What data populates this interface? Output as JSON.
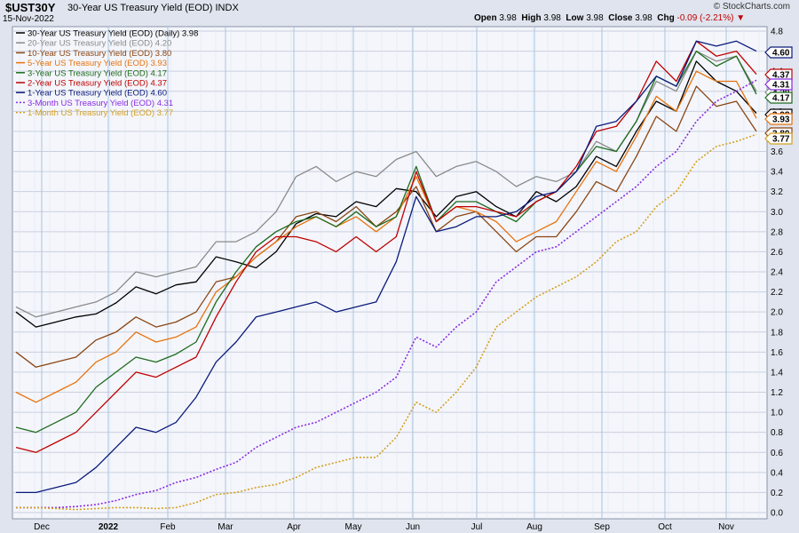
{
  "header": {
    "symbol": "$UST30Y",
    "description": "30-Year US Treasury Yield (EOD)",
    "exchange": "INDX",
    "date": "15-Nov-2022",
    "open_label": "Open",
    "open": "3.98",
    "high_label": "High",
    "high": "3.98",
    "low_label": "Low",
    "low": "3.98",
    "close_label": "Close",
    "close": "3.98",
    "chg_label": "Chg",
    "chg": "-0.09 (-2.21%)",
    "credit": "© StockCharts.com"
  },
  "chart_data": {
    "type": "line",
    "x_labels": [
      "Dec",
      "2022",
      "Feb",
      "Mar",
      "Apr",
      "May",
      "Jun",
      "Jul",
      "Aug",
      "Sep",
      "Oct",
      "Nov"
    ],
    "y_ticks": [
      "0.0",
      "0.2",
      "0.4",
      "0.6",
      "0.8",
      "1.0",
      "1.2",
      "1.4",
      "1.6",
      "1.8",
      "2.0",
      "2.2",
      "2.4",
      "2.6",
      "2.8",
      "3.0",
      "3.2",
      "3.4",
      "3.6",
      "3.8",
      "4.0",
      "4.2",
      "4.4",
      "4.6",
      "4.8"
    ],
    "ylim": [
      0.0,
      4.8
    ],
    "grid": true,
    "legend_position": "top-left",
    "series": [
      {
        "name": "30-Year US Treasury Yield (EOD) (Daily)",
        "last": "3.98",
        "color": "#000000",
        "dashed": false,
        "values": [
          2.0,
          1.85,
          1.9,
          1.95,
          1.98,
          2.09,
          2.25,
          2.18,
          2.27,
          2.3,
          2.55,
          2.5,
          2.44,
          2.6,
          2.88,
          2.98,
          2.95,
          3.1,
          3.05,
          3.23,
          3.2,
          2.95,
          3.15,
          3.2,
          3.05,
          2.95,
          3.2,
          3.1,
          3.25,
          3.55,
          3.45,
          3.8,
          4.1,
          4.0,
          4.5,
          4.3,
          4.2,
          3.98
        ]
      },
      {
        "name": "20-Year US Treasury Yield (EOD)",
        "last": "4.20",
        "color": "#8a8a8a",
        "dashed": false,
        "values": [
          2.05,
          1.95,
          2.0,
          2.05,
          2.1,
          2.2,
          2.4,
          2.35,
          2.4,
          2.45,
          2.7,
          2.7,
          2.8,
          3.0,
          3.35,
          3.45,
          3.3,
          3.4,
          3.35,
          3.52,
          3.6,
          3.35,
          3.45,
          3.5,
          3.4,
          3.25,
          3.35,
          3.3,
          3.4,
          3.7,
          3.6,
          3.9,
          4.3,
          4.2,
          4.6,
          4.5,
          4.55,
          4.2
        ]
      },
      {
        "name": "10-Year US Treasury Yield (EOD)",
        "last": "3.80",
        "color": "#8b4513",
        "dashed": false,
        "values": [
          1.6,
          1.45,
          1.5,
          1.55,
          1.72,
          1.8,
          1.95,
          1.85,
          1.9,
          2.0,
          2.3,
          2.35,
          2.55,
          2.7,
          2.95,
          3.0,
          2.9,
          3.05,
          2.85,
          3.0,
          3.25,
          2.8,
          2.95,
          3.0,
          2.8,
          2.6,
          2.75,
          2.75,
          3.0,
          3.3,
          3.2,
          3.55,
          3.95,
          3.8,
          4.25,
          4.05,
          4.1,
          3.8
        ]
      },
      {
        "name": "5-Year US Treasury Yield (EOD)",
        "last": "3.93",
        "color": "#e8720c",
        "dashed": false,
        "values": [
          1.2,
          1.1,
          1.2,
          1.3,
          1.5,
          1.6,
          1.8,
          1.7,
          1.75,
          1.85,
          2.2,
          2.35,
          2.55,
          2.7,
          2.85,
          2.95,
          2.85,
          2.95,
          2.8,
          2.95,
          3.35,
          2.9,
          3.05,
          3.0,
          2.9,
          2.7,
          2.8,
          2.9,
          3.2,
          3.5,
          3.4,
          3.75,
          4.15,
          4.0,
          4.4,
          4.3,
          4.3,
          3.93
        ]
      },
      {
        "name": "3-Year US Treasury Yield (EOD)",
        "last": "4.17",
        "color": "#1e6b1e",
        "dashed": false,
        "values": [
          0.85,
          0.8,
          0.9,
          1.0,
          1.25,
          1.4,
          1.55,
          1.5,
          1.58,
          1.7,
          2.1,
          2.4,
          2.65,
          2.8,
          2.9,
          2.95,
          2.85,
          3.0,
          2.85,
          2.95,
          3.45,
          2.9,
          3.1,
          3.1,
          3.0,
          2.9,
          3.1,
          3.2,
          3.4,
          3.65,
          3.6,
          3.9,
          4.35,
          4.25,
          4.6,
          4.45,
          4.55,
          4.17
        ]
      },
      {
        "name": "2-Year US Treasury Yield (EOD)",
        "last": "4.37",
        "color": "#c00000",
        "dashed": false,
        "values": [
          0.65,
          0.6,
          0.7,
          0.8,
          1.0,
          1.2,
          1.4,
          1.35,
          1.45,
          1.55,
          1.95,
          2.3,
          2.6,
          2.75,
          2.75,
          2.7,
          2.6,
          2.75,
          2.6,
          2.75,
          3.4,
          2.9,
          3.05,
          3.05,
          3.0,
          2.95,
          3.1,
          3.2,
          3.45,
          3.8,
          3.85,
          4.1,
          4.5,
          4.3,
          4.7,
          4.55,
          4.6,
          4.37
        ]
      },
      {
        "name": "1-Year US Treasury Yield (EOD)",
        "last": "4.60",
        "color": "#0a1a7a",
        "dashed": false,
        "values": [
          0.2,
          0.2,
          0.25,
          0.3,
          0.45,
          0.65,
          0.85,
          0.8,
          0.9,
          1.15,
          1.5,
          1.7,
          1.95,
          2.0,
          2.05,
          2.1,
          2.0,
          2.05,
          2.1,
          2.5,
          3.15,
          2.8,
          2.85,
          2.95,
          2.95,
          3.0,
          3.15,
          3.2,
          3.4,
          3.85,
          3.9,
          4.1,
          4.35,
          4.25,
          4.7,
          4.65,
          4.7,
          4.6
        ]
      },
      {
        "name": "3-Month US Treasury Yield (EOD)",
        "last": "4.31",
        "color": "#8a2be2",
        "dashed": true,
        "values": [
          0.05,
          0.05,
          0.05,
          0.06,
          0.08,
          0.12,
          0.18,
          0.22,
          0.3,
          0.35,
          0.43,
          0.5,
          0.65,
          0.75,
          0.85,
          0.9,
          1.0,
          1.1,
          1.2,
          1.35,
          1.75,
          1.65,
          1.85,
          2.0,
          2.3,
          2.45,
          2.6,
          2.65,
          2.8,
          2.95,
          3.1,
          3.25,
          3.45,
          3.6,
          3.9,
          4.1,
          4.2,
          4.31
        ]
      },
      {
        "name": "1-Month US Treasury Yield (EOD)",
        "last": "3.77",
        "color": "#d4a020",
        "dashed": true,
        "values": [
          0.05,
          0.05,
          0.04,
          0.03,
          0.04,
          0.05,
          0.05,
          0.04,
          0.05,
          0.1,
          0.18,
          0.2,
          0.25,
          0.28,
          0.35,
          0.45,
          0.5,
          0.55,
          0.55,
          0.75,
          1.1,
          1.0,
          1.2,
          1.45,
          1.85,
          2.0,
          2.15,
          2.25,
          2.35,
          2.5,
          2.7,
          2.8,
          3.05,
          3.2,
          3.5,
          3.65,
          3.7,
          3.77
        ]
      }
    ]
  }
}
